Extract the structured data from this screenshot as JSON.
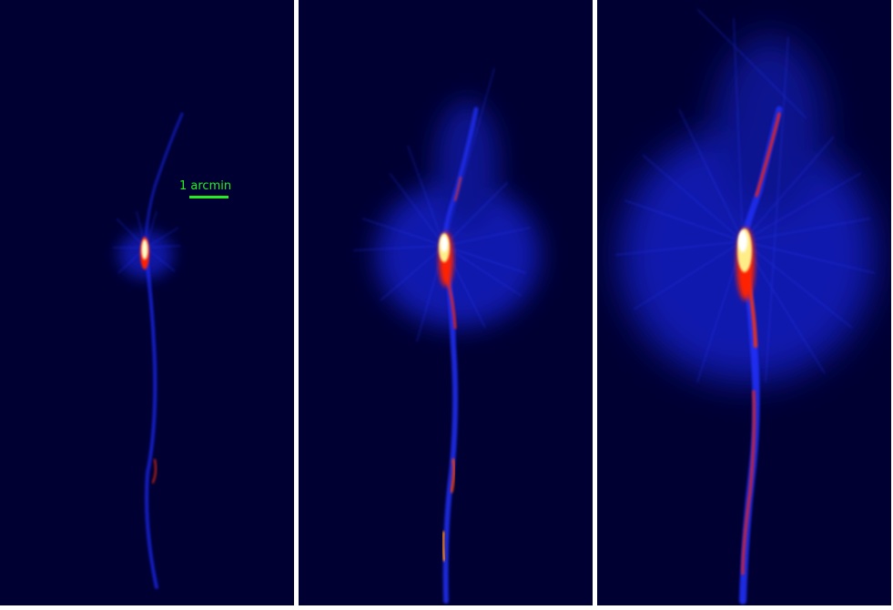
{
  "scale_bar": {
    "label": "1 arcmin",
    "color": "#22ee22"
  },
  "panels": [
    {
      "name": "panel-1"
    },
    {
      "name": "panel-2"
    },
    {
      "name": "panel-3"
    }
  ],
  "colors": {
    "background": "#000033",
    "divider": "#ffffff",
    "glow": "#1a2bff",
    "mid": "#ff2200",
    "hot": "#ffee88",
    "core": "#ffffff"
  }
}
